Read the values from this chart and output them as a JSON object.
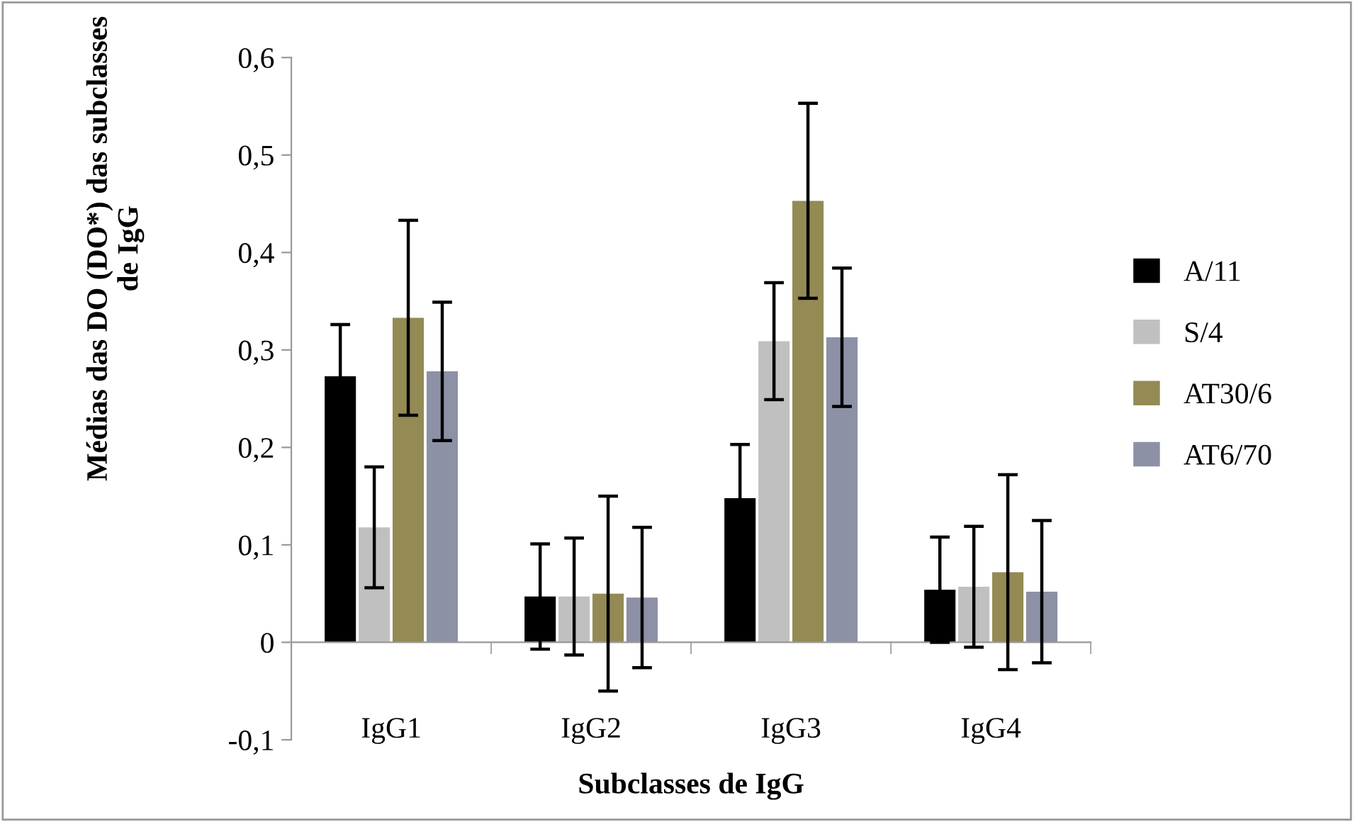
{
  "chart_data": {
    "type": "bar",
    "xlabel": "Subclasses de IgG",
    "ylabel": "Médias das DO (DO*) das subclasses de IgG",
    "categories": [
      "IgG1",
      "IgG2",
      "IgG3",
      "IgG4"
    ],
    "series": [
      {
        "name": "A/11",
        "color": "#000000",
        "values": [
          0.273,
          0.047,
          0.148,
          0.054
        ],
        "errors": [
          0.053,
          0.054,
          0.055,
          0.054
        ]
      },
      {
        "name": "S/4",
        "color": "#c0c0c0",
        "values": [
          0.118,
          0.047,
          0.309,
          0.057
        ],
        "errors": [
          0.062,
          0.06,
          0.06,
          0.062
        ]
      },
      {
        "name": "AT30/6",
        "color": "#948a54",
        "values": [
          0.333,
          0.05,
          0.453,
          0.072
        ],
        "errors": [
          0.1,
          0.1,
          0.1,
          0.1
        ]
      },
      {
        "name": "AT6/70",
        "color": "#8c91a6",
        "values": [
          0.278,
          0.046,
          0.313,
          0.052
        ],
        "errors": [
          0.071,
          0.072,
          0.071,
          0.073
        ]
      }
    ],
    "ylim": [
      -0.1,
      0.6
    ],
    "yticks": [
      {
        "value": -0.1,
        "label": "-0,1"
      },
      {
        "value": 0,
        "label": "0"
      },
      {
        "value": 0.1,
        "label": "0,1"
      },
      {
        "value": 0.2,
        "label": "0,2"
      },
      {
        "value": 0.3,
        "label": "0,3"
      },
      {
        "value": 0.4,
        "label": "0,4"
      },
      {
        "value": 0.5,
        "label": "0,5"
      },
      {
        "value": 0.6,
        "label": "0,6"
      }
    ],
    "grid": false,
    "legend": "right"
  }
}
